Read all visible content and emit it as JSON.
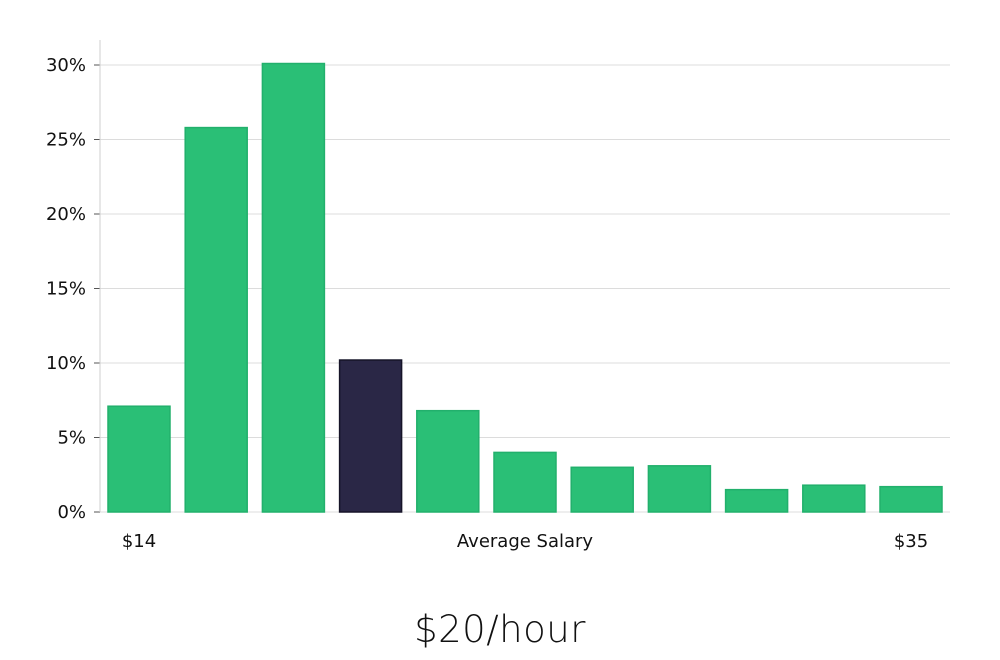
{
  "headline": "$20/hour",
  "chart_data": {
    "type": "bar",
    "title": "",
    "xlabel": "",
    "ylabel": "",
    "ylim": [
      0,
      31.5
    ],
    "yticks": [
      0,
      5,
      10,
      15,
      20,
      25,
      30
    ],
    "ytick_labels": [
      "0%",
      "5%",
      "10%",
      "15%",
      "20%",
      "25%",
      "30%"
    ],
    "x_labels": {
      "left": "$14",
      "center": "Average Salary",
      "right": "$35"
    },
    "values": [
      7.1,
      25.8,
      30.1,
      10.2,
      6.8,
      4.0,
      3.0,
      3.1,
      1.5,
      1.8,
      1.7
    ],
    "highlight_index": 3,
    "grid": true,
    "colors": {
      "bar": "#2abf76",
      "bar_edge": "#22b06c",
      "highlight": "#2a2746",
      "highlight_edge": "#161428",
      "grid": "#dcdcdc",
      "axis": "#cfcfcf"
    }
  }
}
